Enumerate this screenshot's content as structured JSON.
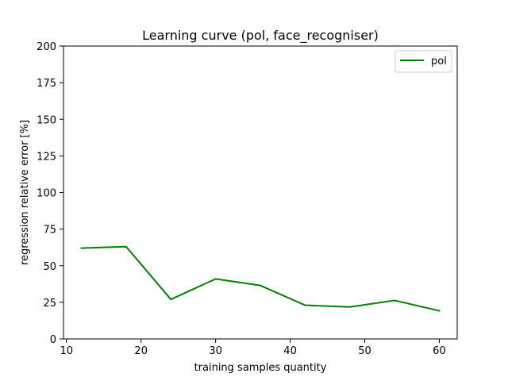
{
  "chart_data": {
    "type": "line",
    "title": "Learning curve (pol, face_recogniser)",
    "xlabel": "training samples quantity",
    "ylabel": "regression relative error [%]",
    "xlim": [
      9.6,
      62.4
    ],
    "ylim": [
      0,
      200
    ],
    "xticks": [
      10,
      20,
      30,
      40,
      50,
      60
    ],
    "yticks": [
      0,
      25,
      50,
      75,
      100,
      125,
      150,
      175,
      200
    ],
    "grid": false,
    "legend_position": "top-right",
    "series": [
      {
        "name": "pol",
        "color": "#008000",
        "x": [
          12,
          18,
          24,
          30,
          36,
          42,
          48,
          54,
          60
        ],
        "y": [
          62,
          63,
          27,
          41,
          36.5,
          23,
          21.8,
          26.3,
          19.2
        ]
      }
    ]
  }
}
